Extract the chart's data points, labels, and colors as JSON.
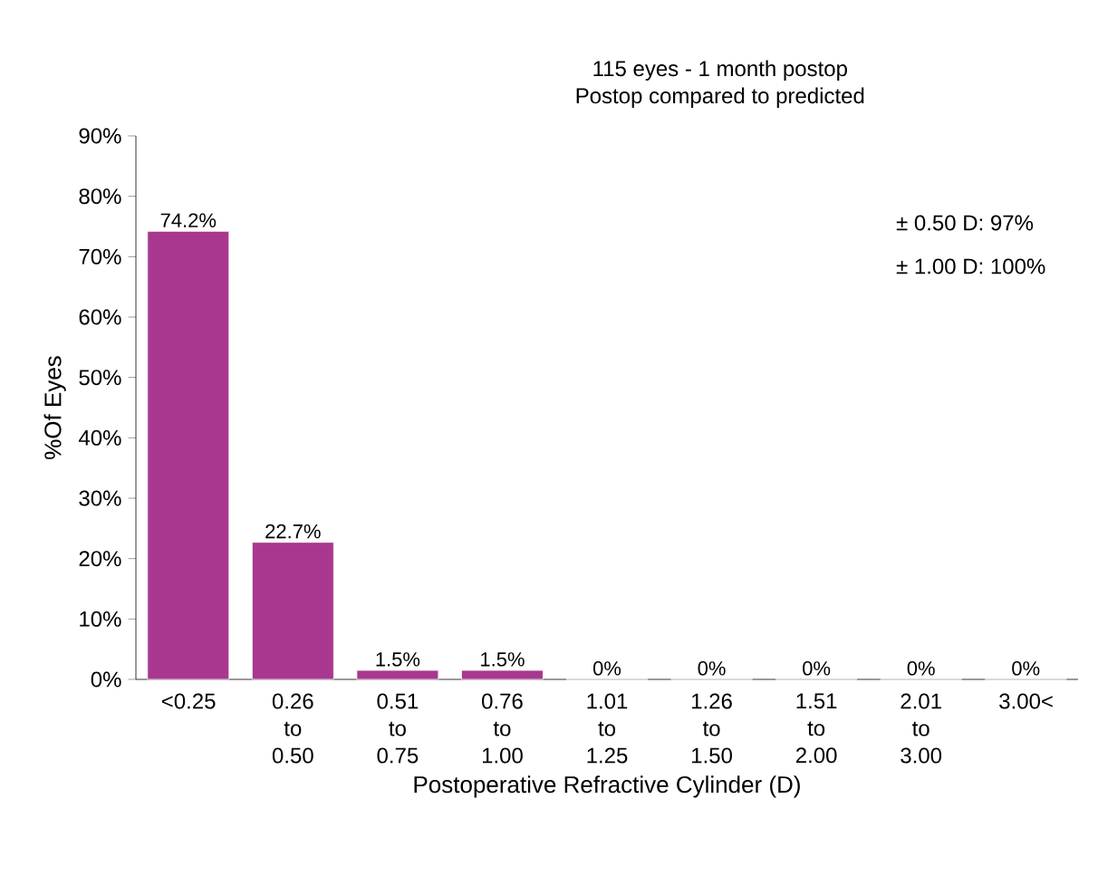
{
  "chart_data": {
    "type": "bar",
    "title": "115 eyes - 1 month postop",
    "subtitle": "Postop compared to predicted",
    "xlabel": "Postoperative Refractive Cylinder (D)",
    "ylabel": "%Of  Eyes",
    "categories": [
      "<0.25",
      "0.26 to 0.50",
      "0.51 to 0.75",
      "0.76 to 1.00",
      "1.01 to 1.25",
      "1.26 to 1.50",
      "1.51 to 2.00",
      "2.01 to 3.00",
      "3.00<"
    ],
    "values": [
      74.2,
      22.7,
      1.5,
      1.5,
      0,
      0,
      0,
      0,
      0
    ],
    "value_labels": [
      "74.2%",
      "22.7%",
      "1.5%",
      "1.5%",
      "0%",
      "0%",
      "0%",
      "0%",
      "0%"
    ],
    "color": "#a8388f",
    "ylim": [
      0,
      90
    ],
    "yticks": [
      {
        "value": 0,
        "label": "0%"
      },
      {
        "value": 10,
        "label": "10%"
      },
      {
        "value": 20,
        "label": "20%"
      },
      {
        "value": 30,
        "label": "30%"
      },
      {
        "value": 40,
        "label": "40%"
      },
      {
        "value": 50,
        "label": "50%"
      },
      {
        "value": 60,
        "label": "60%"
      },
      {
        "value": 70,
        "label": "70%"
      },
      {
        "value": 80,
        "label": "80%"
      },
      {
        "value": 90,
        "label": "90%"
      }
    ],
    "annotations": [
      "± 0.50 D: 97%",
      "± 1.00 D: 100%"
    ],
    "grid": false
  }
}
